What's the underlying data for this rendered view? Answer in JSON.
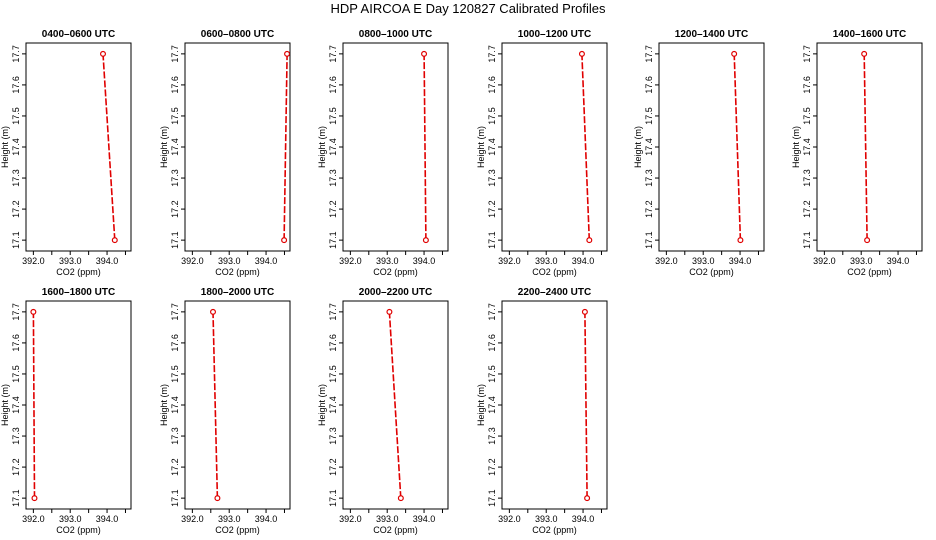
{
  "page": {
    "title": "HDP AIRCOA E  Day 120827  Calibrated Profiles"
  },
  "chart_data": [
    {
      "type": "line",
      "title": "0400–0600 UTC",
      "xlabel": "CO2 (ppm)",
      "ylabel": "Height (m)",
      "xlim": [
        391.8,
        394.65
      ],
      "ylim": [
        17.065,
        17.735
      ],
      "xticks": [
        "392.0",
        "393.0",
        "394.0"
      ],
      "yticks": [
        "17.1",
        "17.2",
        "17.3",
        "17.4",
        "17.5",
        "17.6",
        "17.7"
      ],
      "series": [
        {
          "x": [
            394.21,
            393.89
          ],
          "y": [
            17.1,
            17.7
          ]
        }
      ]
    },
    {
      "type": "line",
      "title": "0600–0800 UTC",
      "xlabel": "CO2 (ppm)",
      "ylabel": "Height (m)",
      "xlim": [
        391.8,
        394.65
      ],
      "ylim": [
        17.065,
        17.735
      ],
      "xticks": [
        "392.0",
        "393.0",
        "394.0"
      ],
      "yticks": [
        "17.1",
        "17.2",
        "17.3",
        "17.4",
        "17.5",
        "17.6",
        "17.7"
      ],
      "series": [
        {
          "x": [
            394.49,
            394.57
          ],
          "y": [
            17.1,
            17.7
          ]
        }
      ]
    },
    {
      "type": "line",
      "title": "0800–1000 UTC",
      "xlabel": "CO2 (ppm)",
      "ylabel": "Height (m)",
      "xlim": [
        391.8,
        394.65
      ],
      "ylim": [
        17.065,
        17.735
      ],
      "xticks": [
        "392.0",
        "393.0",
        "394.0"
      ],
      "yticks": [
        "17.1",
        "17.2",
        "17.3",
        "17.4",
        "17.5",
        "17.6",
        "17.7"
      ],
      "series": [
        {
          "x": [
            394.05,
            394.0
          ],
          "y": [
            17.1,
            17.7
          ]
        }
      ]
    },
    {
      "type": "line",
      "title": "1000–1200 UTC",
      "xlabel": "CO2 (ppm)",
      "ylabel": "Height (m)",
      "xlim": [
        391.8,
        394.65
      ],
      "ylim": [
        17.065,
        17.735
      ],
      "xticks": [
        "392.0",
        "393.0",
        "394.0"
      ],
      "yticks": [
        "17.1",
        "17.2",
        "17.3",
        "17.4",
        "17.5",
        "17.6",
        "17.7"
      ],
      "series": [
        {
          "x": [
            394.17,
            393.97
          ],
          "y": [
            17.1,
            17.7
          ]
        }
      ]
    },
    {
      "type": "line",
      "title": "1200–1400 UTC",
      "xlabel": "CO2 (ppm)",
      "ylabel": "Height (m)",
      "xlim": [
        391.8,
        394.65
      ],
      "ylim": [
        17.065,
        17.735
      ],
      "xticks": [
        "392.0",
        "393.0",
        "394.0"
      ],
      "yticks": [
        "17.1",
        "17.2",
        "17.3",
        "17.4",
        "17.5",
        "17.6",
        "17.7"
      ],
      "series": [
        {
          "x": [
            394.01,
            393.84
          ],
          "y": [
            17.1,
            17.7
          ]
        }
      ]
    },
    {
      "type": "line",
      "title": "1400–1600 UTC",
      "xlabel": "CO2 (ppm)",
      "ylabel": "Height (m)",
      "xlim": [
        391.8,
        394.65
      ],
      "ylim": [
        17.065,
        17.735
      ],
      "xticks": [
        "392.0",
        "393.0",
        "394.0"
      ],
      "yticks": [
        "17.1",
        "17.2",
        "17.3",
        "17.4",
        "17.5",
        "17.6",
        "17.7"
      ],
      "series": [
        {
          "x": [
            393.16,
            393.08
          ],
          "y": [
            17.1,
            17.7
          ]
        }
      ]
    },
    {
      "type": "line",
      "title": "1600–1800 UTC",
      "xlabel": "CO2 (ppm)",
      "ylabel": "Height (m)",
      "xlim": [
        391.8,
        394.65
      ],
      "ylim": [
        17.065,
        17.735
      ],
      "xticks": [
        "392.0",
        "393.0",
        "394.0"
      ],
      "yticks": [
        "17.1",
        "17.2",
        "17.3",
        "17.4",
        "17.5",
        "17.6",
        "17.7"
      ],
      "series": [
        {
          "x": [
            392.03,
            392.0
          ],
          "y": [
            17.1,
            17.7
          ]
        }
      ]
    },
    {
      "type": "line",
      "title": "1800–2000 UTC",
      "xlabel": "CO2 (ppm)",
      "ylabel": "Height (m)",
      "xlim": [
        391.8,
        394.65
      ],
      "ylim": [
        17.065,
        17.735
      ],
      "xticks": [
        "392.0",
        "393.0",
        "394.0"
      ],
      "yticks": [
        "17.1",
        "17.2",
        "17.3",
        "17.4",
        "17.5",
        "17.6",
        "17.7"
      ],
      "series": [
        {
          "x": [
            392.68,
            392.56
          ],
          "y": [
            17.1,
            17.7
          ]
        }
      ]
    },
    {
      "type": "line",
      "title": "2000–2200 UTC",
      "xlabel": "CO2 (ppm)",
      "ylabel": "Height (m)",
      "xlim": [
        391.8,
        394.65
      ],
      "ylim": [
        17.065,
        17.735
      ],
      "xticks": [
        "392.0",
        "393.0",
        "394.0"
      ],
      "yticks": [
        "17.1",
        "17.2",
        "17.3",
        "17.4",
        "17.5",
        "17.6",
        "17.7"
      ],
      "series": [
        {
          "x": [
            393.37,
            393.06
          ],
          "y": [
            17.1,
            17.7
          ]
        }
      ]
    },
    {
      "type": "line",
      "title": "2200–2400 UTC",
      "xlabel": "CO2 (ppm)",
      "ylabel": "Height (m)",
      "xlim": [
        391.8,
        394.65
      ],
      "ylim": [
        17.065,
        17.735
      ],
      "xticks": [
        "392.0",
        "393.0",
        "394.0"
      ],
      "yticks": [
        "17.1",
        "17.2",
        "17.3",
        "17.4",
        "17.5",
        "17.6",
        "17.7"
      ],
      "series": [
        {
          "x": [
            394.11,
            394.05
          ],
          "y": [
            17.1,
            17.7
          ]
        }
      ]
    }
  ],
  "colors": {
    "line": "#e00000",
    "marker": "#e00000",
    "axes": "#000000"
  }
}
